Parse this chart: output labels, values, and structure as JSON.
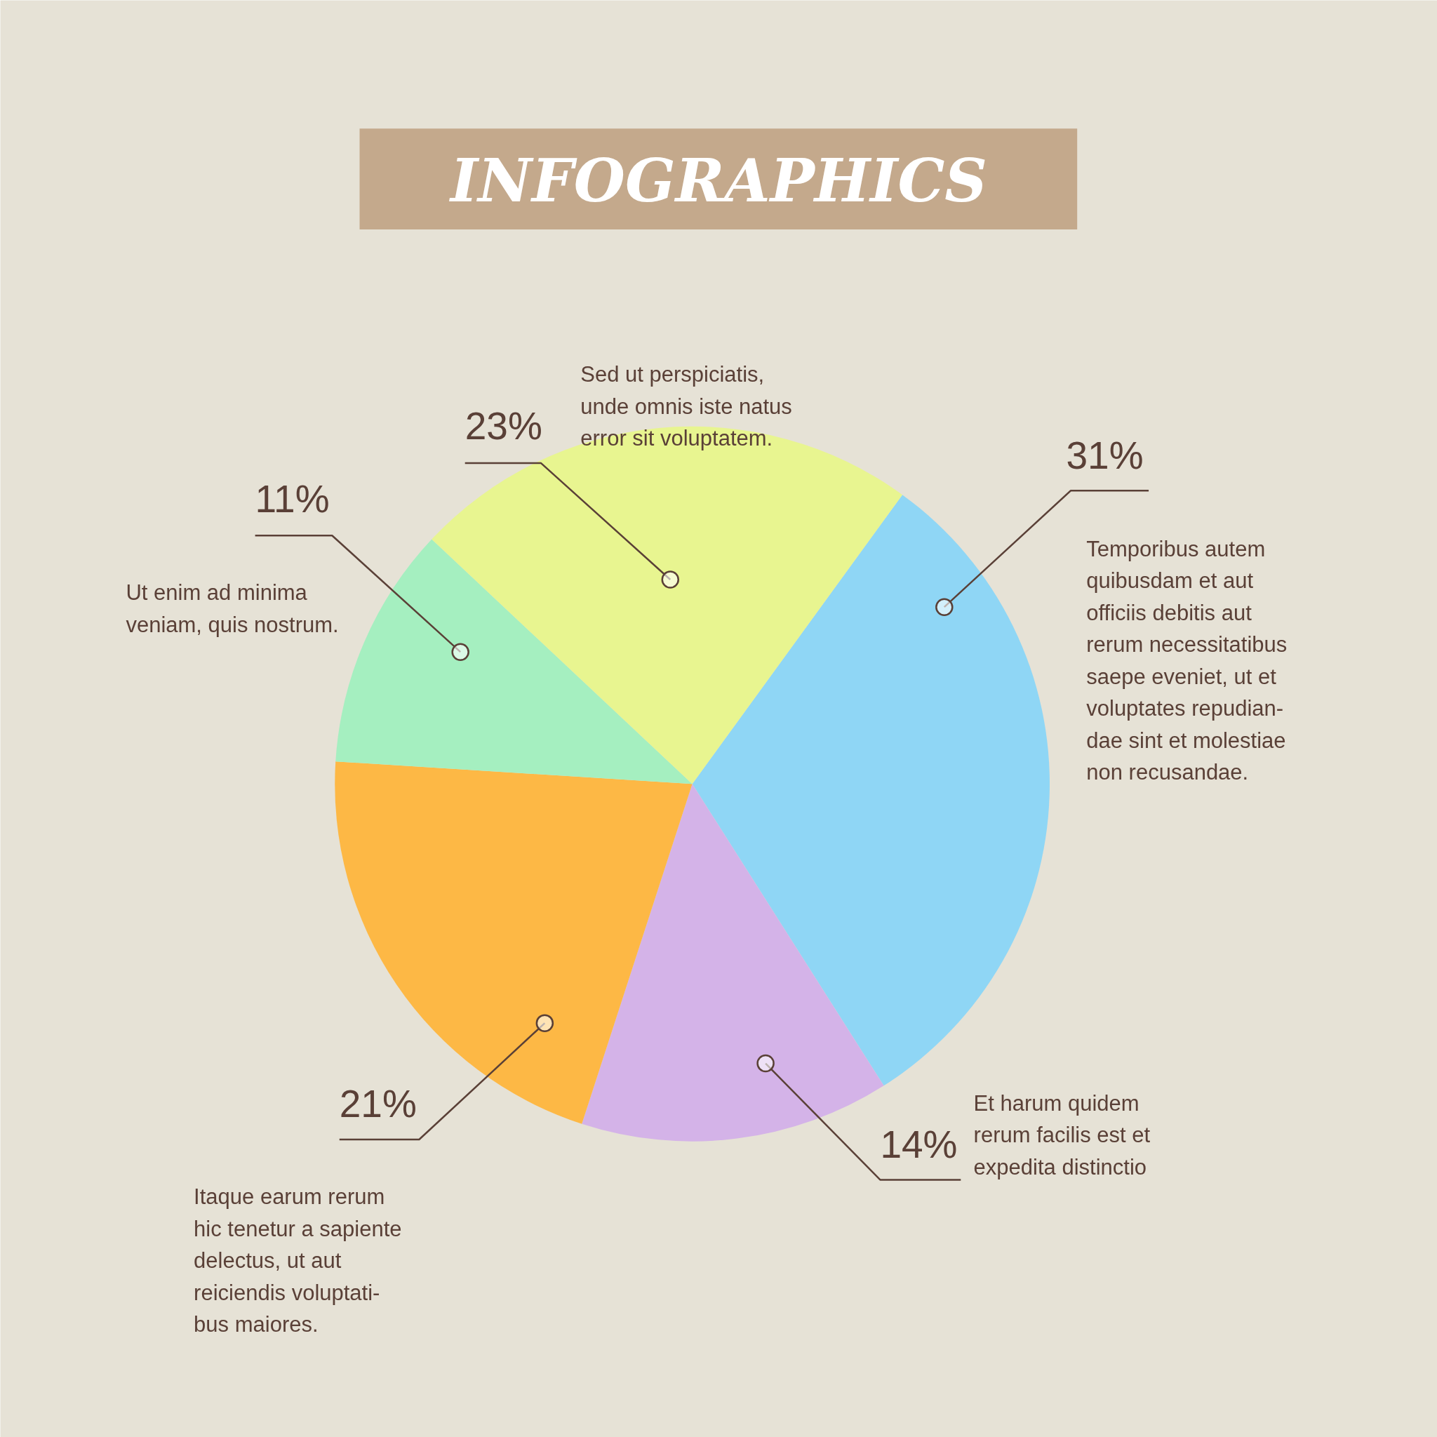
{
  "chart_data": {
    "type": "pie",
    "title": "INFOGRAPHICS",
    "categories": [
      "Temporibus autem\nquibusdam et aut\nofficiis debitis aut\nrerum necessitatibus\nsaepe eveniet, ut et\nvoluptates repudian-\ndae sint et molestiae\nnon recusandae.",
      "Et harum quidem\nrerum facilis est et\nexpedita distinctio",
      "Itaque earum rerum\nhic tenetur a sapiente\ndelectus, ut aut\nreiciendis voluptati-\nbus maiores.",
      "Ut enim ad minima\nveniam, quis nostrum.",
      "Sed ut perspiciatis,\nunde omnis iste natus\nerror sit voluptatem."
    ],
    "values": [
      31,
      14,
      21,
      11,
      23
    ],
    "value_labels": [
      "31%",
      "14%",
      "21%",
      "11%",
      "23%"
    ],
    "colors": [
      "#8fd6f5",
      "#d4b3e8",
      "#fdb845",
      "#a5efc0",
      "#e8f590"
    ]
  }
}
